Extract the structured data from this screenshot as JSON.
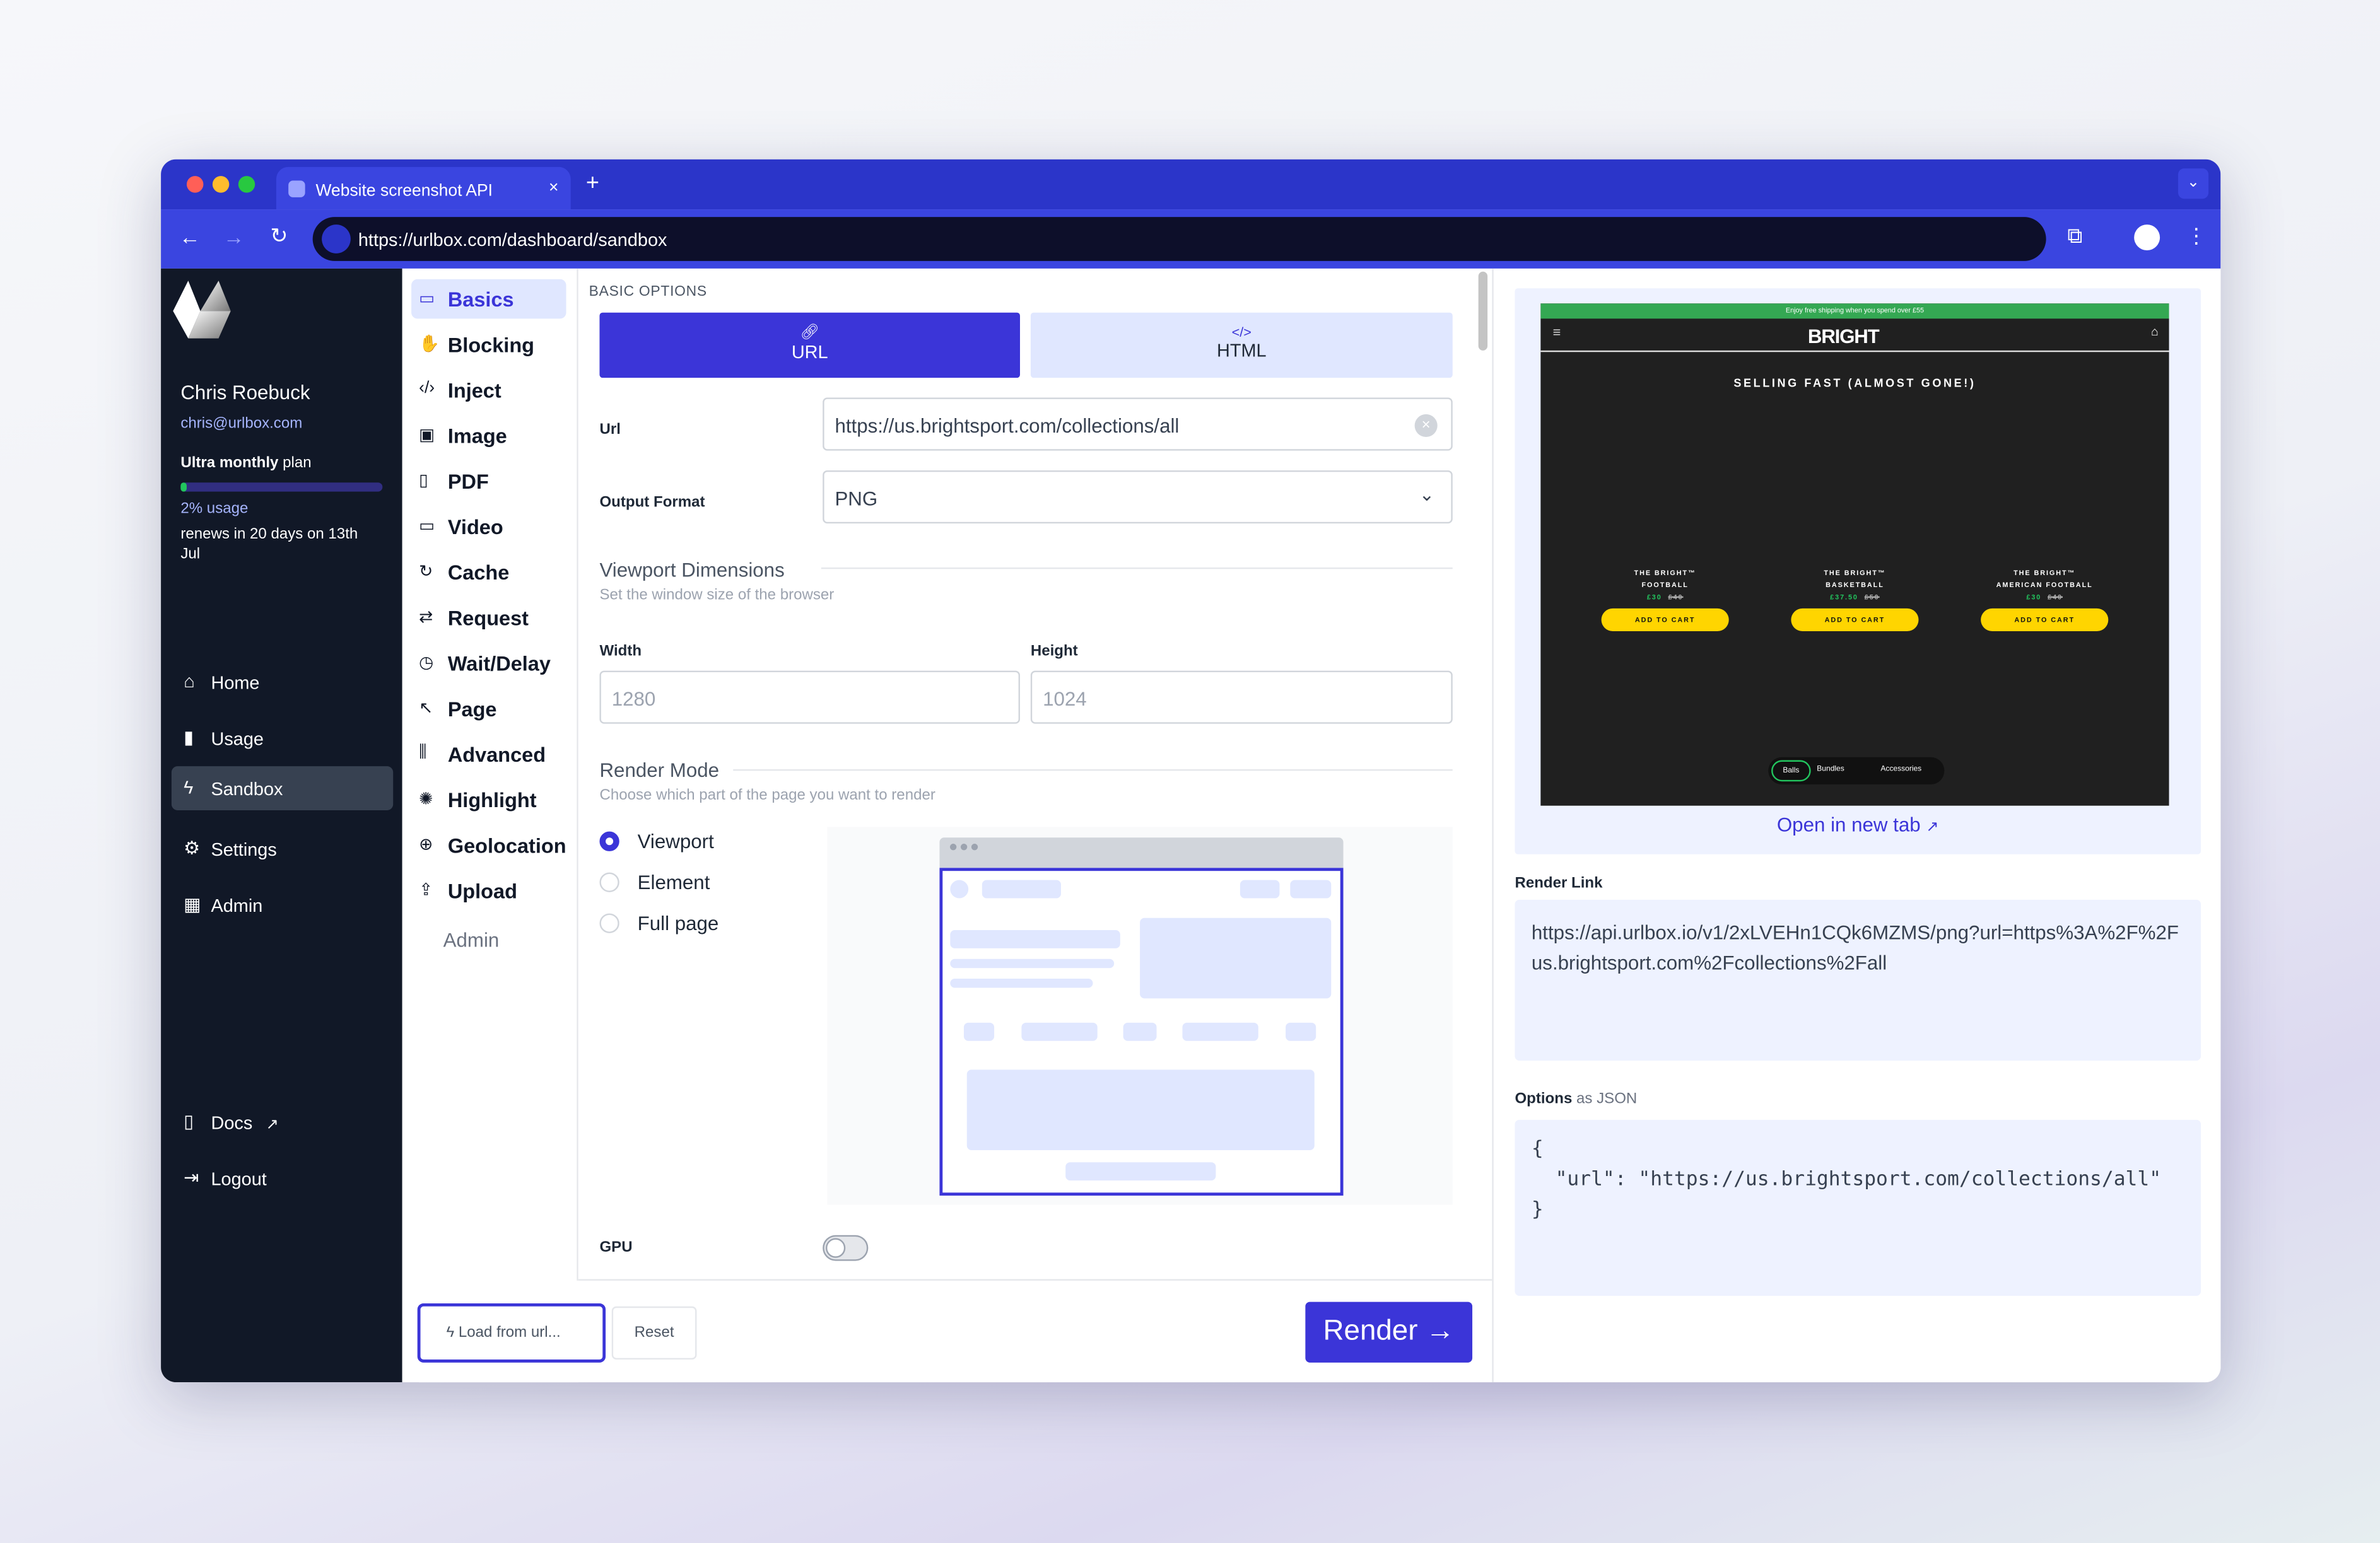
{
  "browser": {
    "tab_title": "Website screenshot API | Urlbox",
    "url": "https://urlbox.com/dashboard/sandbox",
    "new_tab": "+",
    "close_tab": "×"
  },
  "user": {
    "name": "Chris Roebuck",
    "email": "chris@urlbox.com",
    "plan_bold": "Ultra monthly",
    "plan_rest": " plan",
    "usage_percent": 2,
    "usage_text": "2% usage",
    "renews": "renews in 20 days on 13th Jul"
  },
  "nav": [
    {
      "label": "Home",
      "icon": "home-icon"
    },
    {
      "label": "Usage",
      "icon": "bar-chart-icon"
    },
    {
      "label": "Sandbox",
      "icon": "bolt-icon",
      "active": true
    },
    {
      "label": "Settings",
      "icon": "gear-icon"
    },
    {
      "label": "Admin",
      "icon": "admin-icon"
    }
  ],
  "nav_bottom": [
    {
      "label": "Docs",
      "icon": "book-icon"
    },
    {
      "label": "Logout",
      "icon": "logout-icon"
    }
  ],
  "options_menu": [
    {
      "label": "Basics",
      "active": true
    },
    {
      "label": "Blocking"
    },
    {
      "label": "Inject"
    },
    {
      "label": "Image"
    },
    {
      "label": "PDF"
    },
    {
      "label": "Video"
    },
    {
      "label": "Cache"
    },
    {
      "label": "Request"
    },
    {
      "label": "Wait/Delay"
    },
    {
      "label": "Page"
    },
    {
      "label": "Advanced"
    },
    {
      "label": "Highlight"
    },
    {
      "label": "Geolocation"
    },
    {
      "label": "Upload"
    }
  ],
  "options_menu_admin": "Admin",
  "form": {
    "section": "BASIC OPTIONS",
    "tab_url": "URL",
    "tab_html": "HTML",
    "url_label": "Url",
    "url_value": "https://us.brightsport.com/collections/all",
    "format_label": "Output Format",
    "format_value": "PNG",
    "viewport_title": "Viewport Dimensions",
    "viewport_sub": "Set the window size of the browser",
    "width_label": "Width",
    "width_placeholder": "1280",
    "height_label": "Height",
    "height_placeholder": "1024",
    "render_mode_title": "Render Mode",
    "render_mode_sub": "Choose which part of the page you want to render",
    "render_modes": [
      {
        "label": "Viewport",
        "selected": true
      },
      {
        "label": "Element",
        "selected": false
      },
      {
        "label": "Full page",
        "selected": false
      }
    ],
    "gpu_label": "GPU",
    "gpu_on": false
  },
  "footer": {
    "load": "Load from url...",
    "reset": "Reset",
    "render": "Render →"
  },
  "preview": {
    "banner": "Enjoy free shipping when you spend over £55",
    "brand": "BRIGHT",
    "heading": "SELLING FAST (ALMOST GONE!)",
    "products": [
      {
        "line1": "THE BRIGHT™",
        "line2": "FOOTBALL",
        "price": "£30",
        "old": "£40",
        "cta": "ADD TO CART"
      },
      {
        "line1": "THE BRIGHT™",
        "line2": "BASKETBALL",
        "price": "£37.50",
        "old": "£50",
        "cta": "ADD TO CART"
      },
      {
        "line1": "THE BRIGHT™",
        "line2": "AMERICAN FOOTBALL",
        "price": "£30",
        "old": "£40",
        "cta": "ADD TO CART"
      }
    ],
    "pills": [
      "Balls",
      "Bundles",
      "Accessories"
    ],
    "open_new_tab": "Open in new tab"
  },
  "render_link": {
    "label": "Render Link",
    "value": "https://api.urlbox.io/v1/2xLVEHn1CQk6MZMS/png?url=https%3A%2F%2Fus.brightsport.com%2Fcollections%2Fall"
  },
  "options_json": {
    "label_bold": "Options",
    "label_rest": " as JSON",
    "value": "{\n  \"url\": \"https://us.brightsport.com/collections/all\"\n}"
  },
  "colors": {
    "accent": "#3b35d8",
    "sidebar": "#111827",
    "browser": "#2b35c9"
  }
}
